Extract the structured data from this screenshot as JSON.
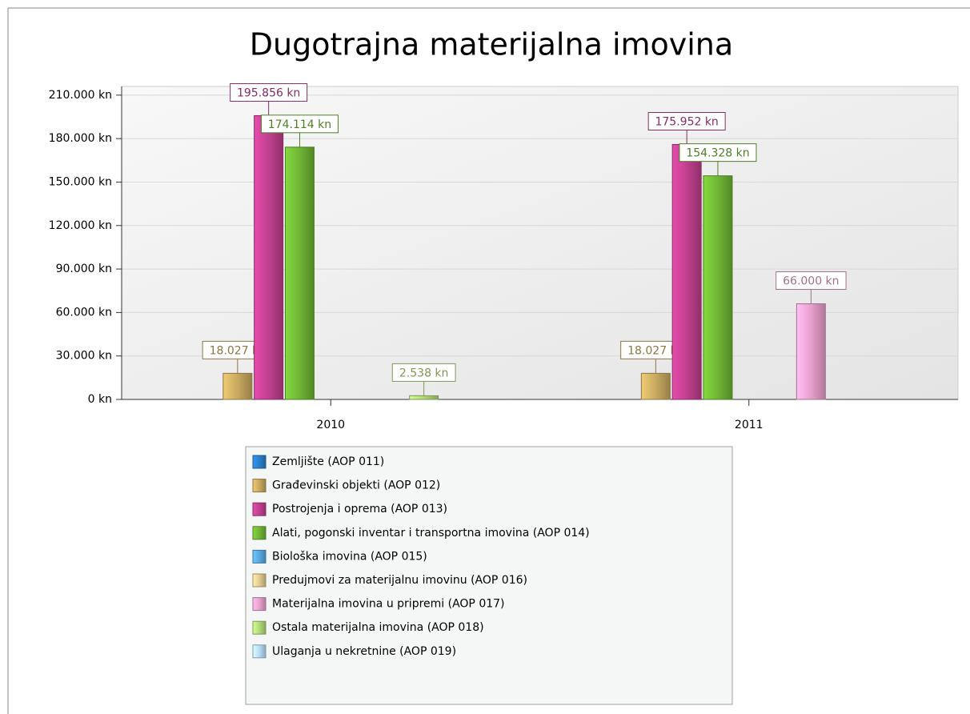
{
  "chart_data": {
    "type": "bar",
    "title": "Dugotrajna materijalna imovina",
    "categories": [
      "2010",
      "2011"
    ],
    "series": [
      {
        "name": "Zemljište (AOP 011)",
        "color": "#2a7fc9",
        "values": [
          null,
          null
        ],
        "value_labels": [
          null,
          null
        ]
      },
      {
        "name": "Građevinski objekti (AOP 012)",
        "color": "#c8a960",
        "values": [
          18027,
          18027
        ],
        "value_labels": [
          "18.027 kn",
          "18.027 kn"
        ]
      },
      {
        "name": "Postrojenja i oprema (AOP 013)",
        "color": "#c0408f",
        "values": [
          195856,
          175952
        ],
        "value_labels": [
          "195.856 kn",
          "175.952 kn"
        ]
      },
      {
        "name": "Alati, pogonski inventar i transportna imovina (AOP 014)",
        "color": "#6fb535",
        "values": [
          174114,
          154328
        ],
        "value_labels": [
          "174.114 kn",
          "154.328 kn"
        ]
      },
      {
        "name": "Biološka imovina (AOP 015)",
        "color": "#58a8e0",
        "values": [
          null,
          null
        ],
        "value_labels": [
          null,
          null
        ]
      },
      {
        "name": "Predujmovi za materijalnu imovinu (AOP 016)",
        "color": "#e0cb90",
        "values": [
          null,
          null
        ],
        "value_labels": [
          null,
          null
        ]
      },
      {
        "name": "Materijalna imovina u pripremi (AOP 017)",
        "color": "#e8a0cc",
        "values": [
          null,
          66000
        ],
        "value_labels": [
          null,
          "66.000 kn"
        ]
      },
      {
        "name": "Ostala materijalna imovina (AOP 018)",
        "color": "#b2d97a",
        "values": [
          2538,
          null
        ],
        "value_labels": [
          "2.538 kn",
          null
        ]
      },
      {
        "name": "Ulaganja u nekretnine (AOP 019)",
        "color": "#b8dcf5",
        "values": [
          null,
          null
        ],
        "value_labels": [
          null,
          null
        ]
      }
    ],
    "ylim": [
      0,
      216000
    ],
    "yticks": [
      {
        "value": 0,
        "label": "0 kn"
      },
      {
        "value": 30000,
        "label": "30.000 kn"
      },
      {
        "value": 60000,
        "label": "60.000 kn"
      },
      {
        "value": 90000,
        "label": "90.000 kn"
      },
      {
        "value": 120000,
        "label": "120.000 kn"
      },
      {
        "value": 150000,
        "label": "150.000 kn"
      },
      {
        "value": 180000,
        "label": "180.000 kn"
      },
      {
        "value": 210000,
        "label": "210.000 kn"
      }
    ],
    "grid": true,
    "legend": "bottom"
  }
}
